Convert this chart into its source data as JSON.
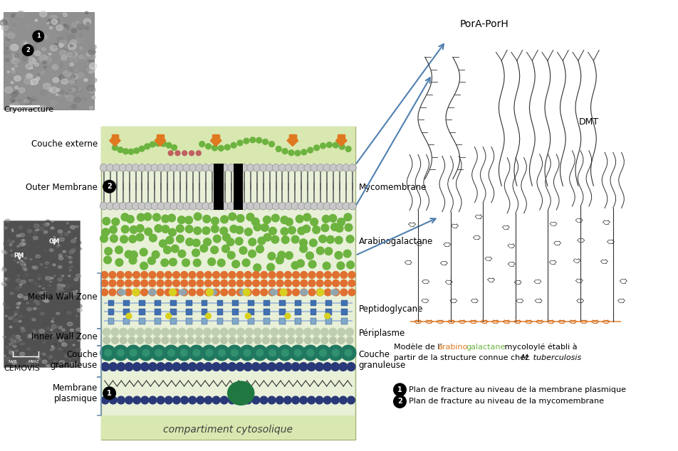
{
  "bg_color": "#ffffff",
  "figsize": [
    9.53,
    6.34
  ],
  "dpi": 100,
  "labels": {
    "couche_externe": "Couche externe",
    "outer_membrane": "Outer Membrane",
    "mycomembrane": "Mycomembrane",
    "arabinogalactane": "Arabinogalactane",
    "media_wall_zone": "Media Wall Zone",
    "peptidoglycane": "Peptidoglycane",
    "inner_wall_zone": "Inner Wall Zone",
    "periplasme": "Périplasme",
    "couche_granuleuse": "Couche\ngranuleuse",
    "membrane_plasmique": "Membrane\nplasmique",
    "compartiment": "compartiment cytosolique",
    "cryofracture": "Cryofracture",
    "cemovis": "CEMOVIS",
    "pora_porh": "PorA-PorH",
    "dmt": "DMT",
    "legend1": "Plan de fracture au niveau de la membrane plasmique",
    "legend2": "Plan de fracture au niveau de la mycomembrane"
  },
  "colors": {
    "bg_diagram": "#e8f0d8",
    "bg_couche_ext": "#dce8c0",
    "bg_compartiment": "#dce8c0",
    "green_dots": "#6db33f",
    "orange_diamonds": "#e07820",
    "pink_dots": "#c06060",
    "orange_dots": "#e07030",
    "blue_squares": "#4070b0",
    "light_blue_squares": "#80a8c8",
    "yellow_dots": "#d8d020",
    "teal_large": "#207860",
    "teal_medium": "#309070",
    "dark_blue_small": "#283878",
    "membrane_line": "#888888",
    "black": "#000000",
    "white": "#ffffff",
    "arabino_color": "#e07820",
    "galactane_color": "#6db33f",
    "arrow_color": "#5080b0",
    "bracket_color": "#7090b0",
    "lipid_color": "#404040",
    "struct_color": "#303030"
  }
}
